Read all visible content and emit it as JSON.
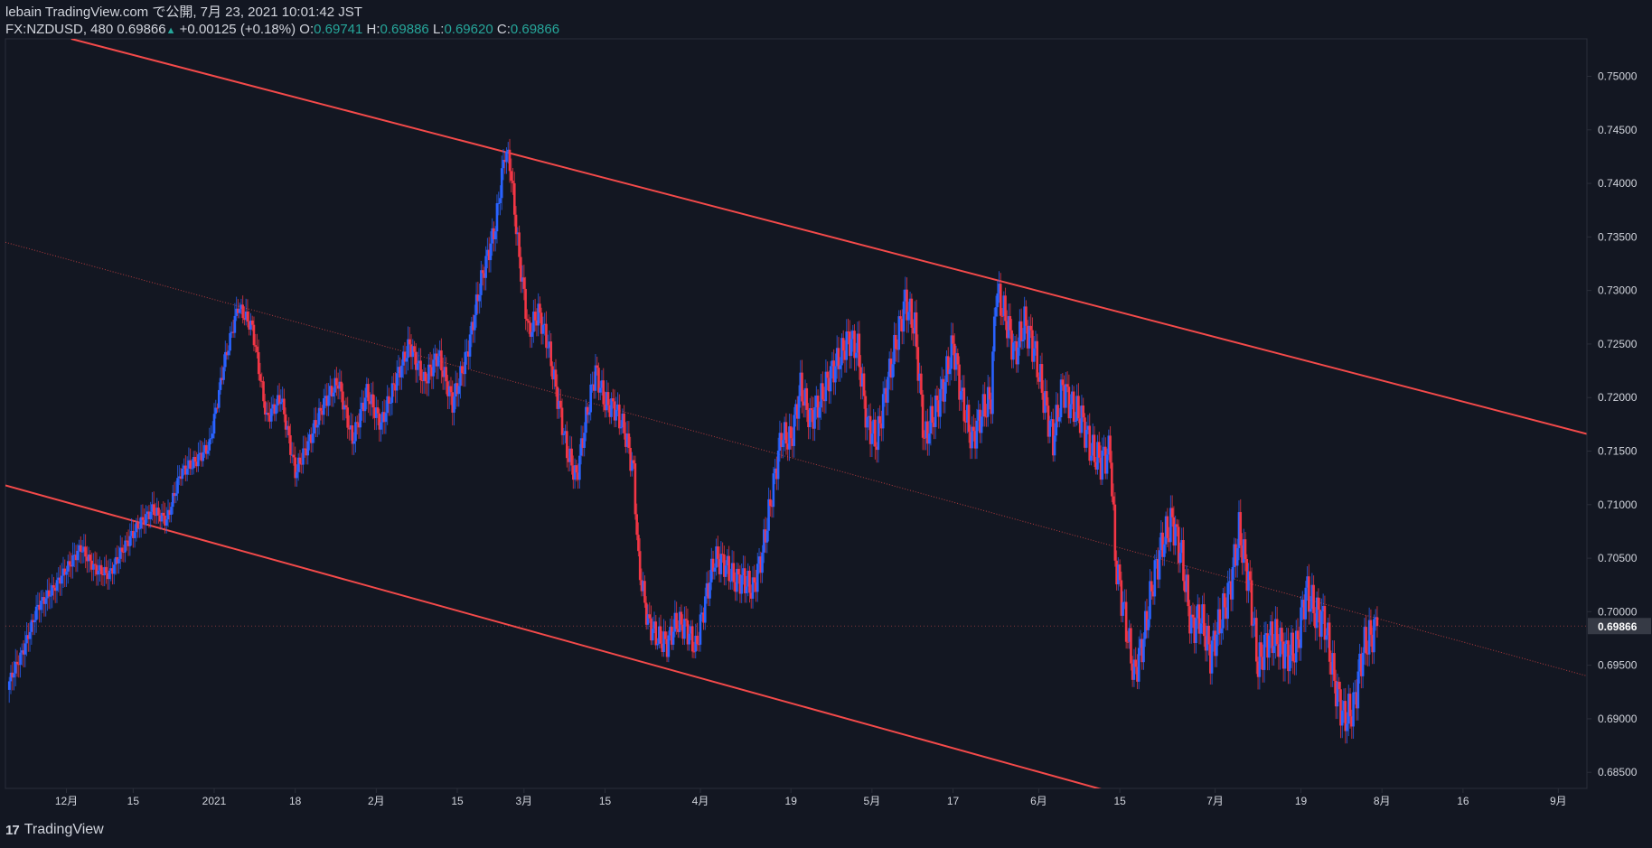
{
  "header": {
    "publisher_line": "lebain TradingView.com で公開, 7月 23, 2021 10:01:42 JST",
    "symbol": "FX:NZDUSD, 480",
    "last": "0.69866",
    "change": "+0.00125 (+0.18%)",
    "o_label": "O:",
    "o_value": "0.69741",
    "h_label": "H:",
    "h_value": "0.69886",
    "l_label": "L:",
    "l_value": "0.69620",
    "c_label": "C:",
    "c_value": "0.69866"
  },
  "footer": {
    "brand": "TradingView",
    "logo_text": "17"
  },
  "colors": {
    "background": "#131722",
    "up": "#2962ff",
    "down": "#f23645",
    "trendline": "#f44a4a",
    "grid": "#2a2e39",
    "axis_text": "#d1d4dc",
    "price_tag_bg": "#363a45"
  },
  "chart_data": {
    "type": "candlestick",
    "y_ticks": [
      "0.75000",
      "0.74500",
      "0.74000",
      "0.73500",
      "0.73000",
      "0.72500",
      "0.72000",
      "0.71500",
      "0.71000",
      "0.70500",
      "0.70000",
      "0.69500",
      "0.69000",
      "0.68500"
    ],
    "ylim": [
      0.6835,
      0.7535
    ],
    "x_ticks": [
      "12月",
      "15",
      "2021",
      "18",
      "2月",
      "15",
      "3月",
      "15",
      "4月",
      "19",
      "5月",
      "17",
      "6月",
      "15",
      "7月",
      "19",
      "8月",
      "16",
      "9月"
    ],
    "x_tick_days": [
      9,
      23,
      40,
      57,
      74,
      91,
      105,
      122,
      142,
      161,
      178,
      195,
      213,
      230,
      250,
      268,
      285,
      302,
      322
    ],
    "xlim": [
      -3.8,
      328
    ],
    "current_price": "0.69866",
    "close_anchors": [
      [
        -3,
        0.6935
      ],
      [
        0,
        0.6965
      ],
      [
        3,
        0.7005
      ],
      [
        6,
        0.702
      ],
      [
        9,
        0.704
      ],
      [
        12,
        0.706
      ],
      [
        15,
        0.704
      ],
      [
        18,
        0.7035
      ],
      [
        21,
        0.706
      ],
      [
        24,
        0.708
      ],
      [
        27,
        0.7095
      ],
      [
        30,
        0.7085
      ],
      [
        33,
        0.713
      ],
      [
        36,
        0.714
      ],
      [
        39,
        0.7155
      ],
      [
        42,
        0.723
      ],
      [
        45,
        0.7285
      ],
      [
        48,
        0.7265
      ],
      [
        51,
        0.718
      ],
      [
        54,
        0.72
      ],
      [
        57,
        0.713
      ],
      [
        60,
        0.716
      ],
      [
        63,
        0.7195
      ],
      [
        66,
        0.7215
      ],
      [
        69,
        0.716
      ],
      [
        72,
        0.7205
      ],
      [
        75,
        0.7175
      ],
      [
        78,
        0.7215
      ],
      [
        81,
        0.725
      ],
      [
        84,
        0.7215
      ],
      [
        87,
        0.724
      ],
      [
        90,
        0.7195
      ],
      [
        93,
        0.724
      ],
      [
        96,
        0.731
      ],
      [
        99,
        0.736
      ],
      [
        101,
        0.743
      ],
      [
        102,
        0.742
      ],
      [
        104,
        0.733
      ],
      [
        106,
        0.726
      ],
      [
        108,
        0.728
      ],
      [
        110,
        0.725
      ],
      [
        112,
        0.72
      ],
      [
        114,
        0.715
      ],
      [
        116,
        0.7125
      ],
      [
        118,
        0.718
      ],
      [
        120,
        0.7225
      ],
      [
        122,
        0.7195
      ],
      [
        124,
        0.719
      ],
      [
        126,
        0.717
      ],
      [
        128,
        0.713
      ],
      [
        129,
        0.7045
      ],
      [
        131,
        0.699
      ],
      [
        133,
        0.6975
      ],
      [
        135,
        0.697
      ],
      [
        137,
        0.699
      ],
      [
        139,
        0.6985
      ],
      [
        141,
        0.6965
      ],
      [
        143,
        0.701
      ],
      [
        145,
        0.705
      ],
      [
        147,
        0.7045
      ],
      [
        149,
        0.703
      ],
      [
        151,
        0.703
      ],
      [
        153,
        0.702
      ],
      [
        155,
        0.7055
      ],
      [
        157,
        0.711
      ],
      [
        159,
        0.7165
      ],
      [
        161,
        0.716
      ],
      [
        163,
        0.721
      ],
      [
        165,
        0.718
      ],
      [
        167,
        0.7195
      ],
      [
        169,
        0.722
      ],
      [
        171,
        0.7235
      ],
      [
        173,
        0.7255
      ],
      [
        175,
        0.7245
      ],
      [
        177,
        0.7175
      ],
      [
        179,
        0.716
      ],
      [
        181,
        0.721
      ],
      [
        183,
        0.725
      ],
      [
        185,
        0.729
      ],
      [
        187,
        0.7265
      ],
      [
        189,
        0.716
      ],
      [
        191,
        0.7185
      ],
      [
        193,
        0.721
      ],
      [
        195,
        0.725
      ],
      [
        197,
        0.7195
      ],
      [
        199,
        0.716
      ],
      [
        201,
        0.7185
      ],
      [
        203,
        0.72
      ],
      [
        204,
        0.73
      ],
      [
        206,
        0.7275
      ],
      [
        208,
        0.724
      ],
      [
        210,
        0.727
      ],
      [
        212,
        0.7245
      ],
      [
        214,
        0.72
      ],
      [
        216,
        0.716
      ],
      [
        218,
        0.721
      ],
      [
        220,
        0.719
      ],
      [
        222,
        0.718
      ],
      [
        224,
        0.715
      ],
      [
        226,
        0.714
      ],
      [
        228,
        0.715
      ],
      [
        229,
        0.705
      ],
      [
        231,
        0.6995
      ],
      [
        233,
        0.694
      ],
      [
        235,
        0.6975
      ],
      [
        237,
        0.703
      ],
      [
        239,
        0.7065
      ],
      [
        241,
        0.7085
      ],
      [
        243,
        0.705
      ],
      [
        245,
        0.6985
      ],
      [
        247,
        0.6995
      ],
      [
        249,
        0.696
      ],
      [
        251,
        0.699
      ],
      [
        253,
        0.702
      ],
      [
        255,
        0.7075
      ],
      [
        257,
        0.703
      ],
      [
        259,
        0.695
      ],
      [
        261,
        0.6975
      ],
      [
        263,
        0.6975
      ],
      [
        265,
        0.696
      ],
      [
        267,
        0.6965
      ],
      [
        269,
        0.702
      ],
      [
        271,
        0.7
      ],
      [
        273,
        0.699
      ],
      [
        275,
        0.6935
      ],
      [
        277,
        0.69
      ],
      [
        279,
        0.691
      ],
      [
        281,
        0.6965
      ],
      [
        283,
        0.698
      ],
      [
        284,
        0.69866
      ]
    ],
    "trendlines": [
      {
        "name": "upper-channel",
        "style": "solid",
        "points": [
          [
            10,
            0.7535
          ],
          [
            102,
            0.7432
          ],
          [
            204,
            0.7308
          ],
          [
            328,
            0.7166
          ]
        ]
      },
      {
        "name": "lower-channel",
        "style": "solid",
        "points": [
          [
            -3.8,
            0.7118
          ],
          [
            27,
            0.7078
          ],
          [
            137,
            0.6948
          ],
          [
            236,
            0.6822
          ]
        ]
      },
      {
        "name": "mid-channel",
        "style": "dotted",
        "points": [
          [
            -3.8,
            0.7345
          ],
          [
            328,
            0.694
          ]
        ]
      }
    ]
  }
}
